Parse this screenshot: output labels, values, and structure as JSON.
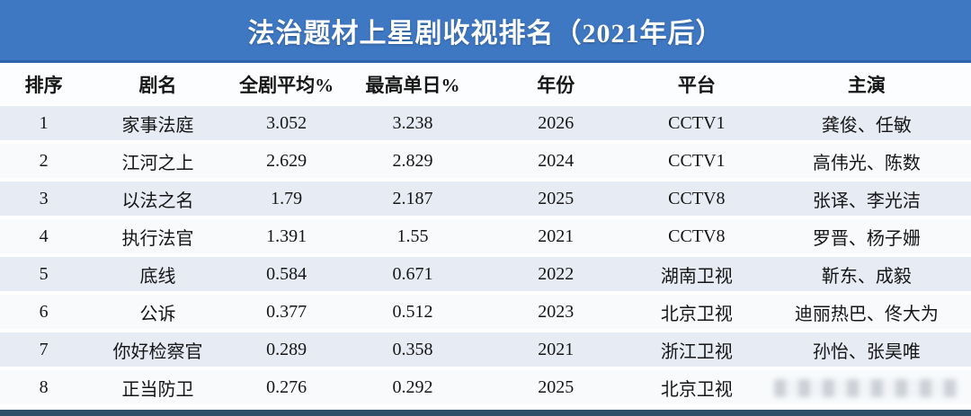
{
  "title": "法治题材上星剧收视排名（2021年后）",
  "chart_data": {
    "type": "table",
    "title": "法治题材上星剧收视排名（2021年后）",
    "columns": [
      {
        "key": "rank",
        "label": "排序"
      },
      {
        "key": "name",
        "label": "剧名"
      },
      {
        "key": "avg",
        "label": "全剧平均%"
      },
      {
        "key": "peak",
        "label": "最高单日%"
      },
      {
        "key": "year",
        "label": "年份"
      },
      {
        "key": "platform",
        "label": "平台"
      },
      {
        "key": "cast",
        "label": "主演"
      }
    ],
    "rows": [
      {
        "rank": "1",
        "name": "家事法庭",
        "avg": "3.052",
        "peak": "3.238",
        "year": "2026",
        "platform": "CCTV1",
        "cast": "龚俊、任敏",
        "cast_obscured": false
      },
      {
        "rank": "2",
        "name": "江河之上",
        "avg": "2.629",
        "peak": "2.829",
        "year": "2024",
        "platform": "CCTV1",
        "cast": "高伟光、陈数",
        "cast_obscured": false
      },
      {
        "rank": "3",
        "name": "以法之名",
        "avg": "1.79",
        "peak": "2.187",
        "year": "2025",
        "platform": "CCTV8",
        "cast": "张译、李光洁",
        "cast_obscured": false
      },
      {
        "rank": "4",
        "name": "执行法官",
        "avg": "1.391",
        "peak": "1.55",
        "year": "2021",
        "platform": "CCTV8",
        "cast": "罗晋、杨子姗",
        "cast_obscured": false
      },
      {
        "rank": "5",
        "name": "底线",
        "avg": "0.584",
        "peak": "0.671",
        "year": "2022",
        "platform": "湖南卫视",
        "cast": "靳东、成毅",
        "cast_obscured": false
      },
      {
        "rank": "6",
        "name": "公诉",
        "avg": "0.377",
        "peak": "0.512",
        "year": "2023",
        "platform": "北京卫视",
        "cast": "迪丽热巴、佟大为",
        "cast_obscured": false
      },
      {
        "rank": "7",
        "name": "你好检察官",
        "avg": "0.289",
        "peak": "0.358",
        "year": "2021",
        "platform": "浙江卫视",
        "cast": "孙怡、张昊唯",
        "cast_obscured": false
      },
      {
        "rank": "8",
        "name": "正当防卫",
        "avg": "0.276",
        "peak": "0.292",
        "year": "2025",
        "platform": "北京卫视",
        "cast": "",
        "cast_obscured": true
      }
    ]
  },
  "colors": {
    "title_band": "#3e77c2",
    "title_band_border": "#2e61ac",
    "row_odd": "#e7ebf3",
    "row_even": "#f8fafc",
    "header_row_bg": "#fcfdfe",
    "bottom_strip": "#2e4f68",
    "text": "#161616",
    "title_text": "#ffffff"
  }
}
